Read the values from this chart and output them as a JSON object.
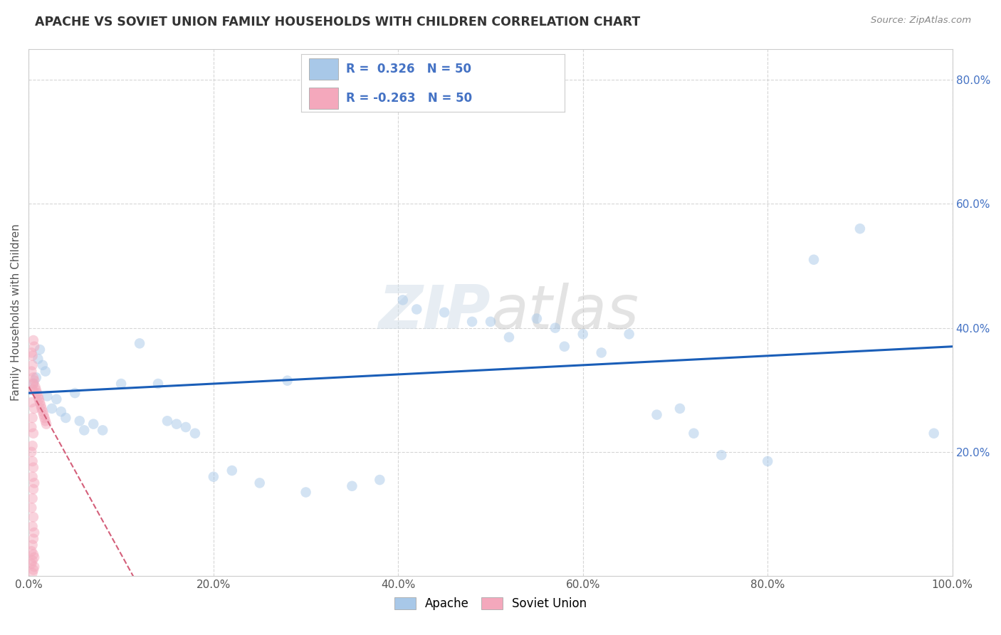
{
  "title": "APACHE VS SOVIET UNION FAMILY HOUSEHOLDS WITH CHILDREN CORRELATION CHART",
  "source": "Source: ZipAtlas.com",
  "ylabel": "Family Households with Children",
  "watermark": "ZIPatlas",
  "apache_R": 0.326,
  "apache_N": 50,
  "soviet_R": -0.263,
  "soviet_N": 50,
  "apache_color": "#a8c8e8",
  "soviet_color": "#f4a8bc",
  "apache_line_color": "#1a5eb8",
  "soviet_line_color": "#d45f7a",
  "apache_scatter": [
    [
      0.5,
      31.0
    ],
    [
      0.8,
      32.0
    ],
    [
      1.0,
      35.0
    ],
    [
      1.2,
      36.5
    ],
    [
      1.5,
      34.0
    ],
    [
      1.8,
      33.0
    ],
    [
      2.0,
      29.0
    ],
    [
      2.5,
      27.0
    ],
    [
      3.0,
      28.5
    ],
    [
      3.5,
      26.5
    ],
    [
      4.0,
      25.5
    ],
    [
      5.0,
      29.5
    ],
    [
      5.5,
      25.0
    ],
    [
      6.0,
      23.5
    ],
    [
      7.0,
      24.5
    ],
    [
      8.0,
      23.5
    ],
    [
      10.0,
      31.0
    ],
    [
      12.0,
      37.5
    ],
    [
      14.0,
      31.0
    ],
    [
      15.0,
      25.0
    ],
    [
      16.0,
      24.5
    ],
    [
      17.0,
      24.0
    ],
    [
      18.0,
      23.0
    ],
    [
      20.0,
      16.0
    ],
    [
      22.0,
      17.0
    ],
    [
      25.0,
      15.0
    ],
    [
      28.0,
      31.5
    ],
    [
      30.0,
      13.5
    ],
    [
      35.0,
      14.5
    ],
    [
      38.0,
      15.5
    ],
    [
      40.5,
      44.5
    ],
    [
      42.0,
      43.0
    ],
    [
      45.0,
      42.5
    ],
    [
      48.0,
      41.0
    ],
    [
      50.0,
      41.0
    ],
    [
      52.0,
      38.5
    ],
    [
      55.0,
      41.5
    ],
    [
      57.0,
      40.0
    ],
    [
      58.0,
      37.0
    ],
    [
      60.0,
      39.0
    ],
    [
      62.0,
      36.0
    ],
    [
      65.0,
      39.0
    ],
    [
      68.0,
      26.0
    ],
    [
      70.5,
      27.0
    ],
    [
      72.0,
      23.0
    ],
    [
      75.0,
      19.5
    ],
    [
      80.0,
      18.5
    ],
    [
      85.0,
      51.0
    ],
    [
      90.0,
      56.0
    ],
    [
      98.0,
      23.0
    ]
  ],
  "soviet_scatter": [
    [
      0.3,
      36.0
    ],
    [
      0.4,
      34.0
    ],
    [
      0.5,
      32.0
    ],
    [
      0.6,
      31.5
    ],
    [
      0.7,
      30.5
    ],
    [
      0.8,
      30.0
    ],
    [
      0.9,
      29.5
    ],
    [
      1.0,
      29.0
    ],
    [
      1.1,
      28.5
    ],
    [
      1.2,
      28.0
    ],
    [
      1.3,
      27.5
    ],
    [
      1.4,
      27.0
    ],
    [
      1.5,
      26.5
    ],
    [
      1.6,
      26.0
    ],
    [
      1.7,
      25.5
    ],
    [
      1.8,
      25.0
    ],
    [
      1.9,
      24.5
    ],
    [
      0.5,
      38.0
    ],
    [
      0.6,
      37.0
    ],
    [
      0.4,
      35.5
    ],
    [
      0.3,
      33.0
    ],
    [
      0.5,
      31.0
    ],
    [
      0.4,
      30.0
    ],
    [
      0.3,
      28.0
    ],
    [
      0.6,
      27.0
    ],
    [
      0.4,
      25.5
    ],
    [
      0.3,
      24.0
    ],
    [
      0.5,
      23.0
    ],
    [
      0.4,
      21.0
    ],
    [
      0.3,
      20.0
    ],
    [
      0.4,
      18.5
    ],
    [
      0.5,
      17.5
    ],
    [
      0.4,
      16.0
    ],
    [
      0.6,
      15.0
    ],
    [
      0.5,
      14.0
    ],
    [
      0.4,
      12.5
    ],
    [
      0.3,
      11.0
    ],
    [
      0.5,
      9.5
    ],
    [
      0.4,
      8.0
    ],
    [
      0.6,
      7.0
    ],
    [
      0.5,
      6.0
    ],
    [
      0.4,
      5.0
    ],
    [
      0.3,
      4.0
    ],
    [
      0.5,
      3.5
    ],
    [
      0.6,
      3.0
    ],
    [
      0.4,
      2.5
    ],
    [
      0.3,
      2.0
    ],
    [
      0.6,
      1.5
    ],
    [
      0.5,
      1.0
    ],
    [
      0.4,
      0.5
    ]
  ],
  "xlim": [
    0,
    100
  ],
  "ylim": [
    0,
    85
  ],
  "xtick_positions": [
    0,
    20,
    40,
    60,
    80,
    100
  ],
  "xticklabels": [
    "0.0%",
    "20.0%",
    "40.0%",
    "60.0%",
    "80.0%",
    "100.0%"
  ],
  "ytick_positions": [
    20,
    40,
    60,
    80
  ],
  "ytick_labels": [
    "20.0%",
    "40.0%",
    "60.0%",
    "80.0%"
  ],
  "grid_color": "#cccccc",
  "background_color": "#ffffff",
  "title_fontsize": 12.5,
  "axis_label_fontsize": 11,
  "tick_fontsize": 11,
  "marker_size": 110,
  "marker_alpha": 0.5
}
